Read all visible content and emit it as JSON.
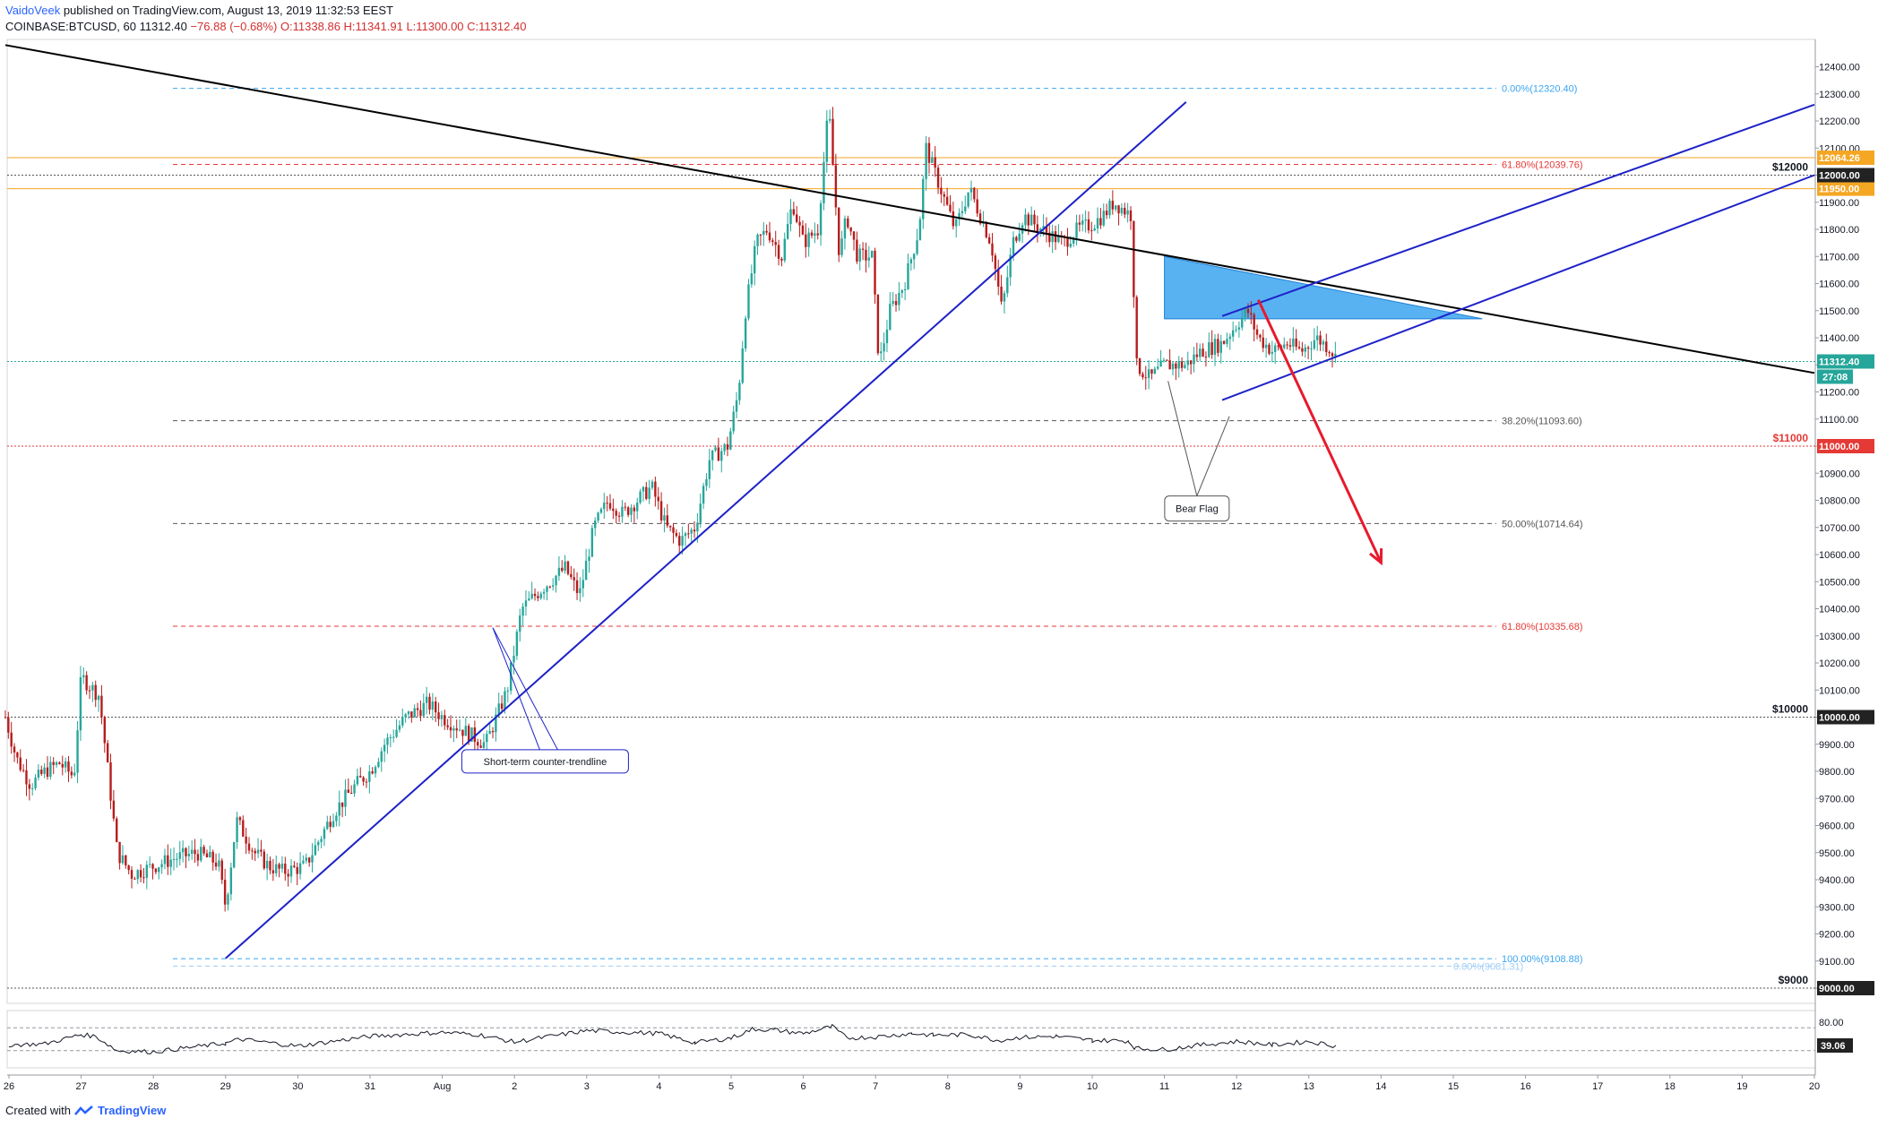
{
  "header": {
    "author": "VaidoVeek",
    "published": "published on TradingView.com, August 13, 2019 11:32:53 EEST",
    "symbol": "COINBASE:BTCUSD, 60",
    "last": "11312.40",
    "change": "−76.88 (−0.68%)",
    "open": "O:11338.86",
    "high": "H:11341.91",
    "low": "L:11300.00",
    "close": "C:11312.40"
  },
  "footer": {
    "created_with": "Created with",
    "brand": "TradingView"
  },
  "colors": {
    "up": "#26a69a",
    "down": "#b71c1c",
    "blue": "#1e22c8",
    "red": "#e53935",
    "orange": "#f5a623",
    "triangle": "#3ba5f0"
  },
  "chart_data": {
    "type": "candlestick",
    "y_axis": {
      "min": 8950,
      "max": 12500,
      "ticks": [
        "9000.00",
        "9100.00",
        "9200.00",
        "9300.00",
        "9400.00",
        "9500.00",
        "9600.00",
        "9700.00",
        "9800.00",
        "9900.00",
        "10000.00",
        "10100.00",
        "10200.00",
        "10300.00",
        "10400.00",
        "10500.00",
        "10600.00",
        "10700.00",
        "10800.00",
        "10900.00",
        "11000.00",
        "11100.00",
        "11200.00",
        "11300.00",
        "11400.00",
        "11500.00",
        "11600.00",
        "11700.00",
        "11800.00",
        "11900.00",
        "12000.00",
        "12100.00",
        "12200.00",
        "12300.00",
        "12400.00"
      ]
    },
    "x_axis": {
      "ticks": [
        {
          "label": "26",
          "day": 0
        },
        {
          "label": "27",
          "day": 1
        },
        {
          "label": "28",
          "day": 2
        },
        {
          "label": "29",
          "day": 3
        },
        {
          "label": "30",
          "day": 4
        },
        {
          "label": "31",
          "day": 5
        },
        {
          "label": "Aug",
          "day": 6
        },
        {
          "label": "2",
          "day": 7
        },
        {
          "label": "3",
          "day": 8
        },
        {
          "label": "4",
          "day": 9
        },
        {
          "label": "5",
          "day": 10
        },
        {
          "label": "6",
          "day": 11
        },
        {
          "label": "7",
          "day": 12
        },
        {
          "label": "8",
          "day": 13
        },
        {
          "label": "9",
          "day": 14
        },
        {
          "label": "10",
          "day": 15
        },
        {
          "label": "11",
          "day": 16
        },
        {
          "label": "12",
          "day": 17
        },
        {
          "label": "13",
          "day": 18
        },
        {
          "label": "14",
          "day": 19
        },
        {
          "label": "15",
          "day": 20
        },
        {
          "label": "16",
          "day": 21
        },
        {
          "label": "17",
          "day": 22
        },
        {
          "label": "18",
          "day": 23
        },
        {
          "label": "19",
          "day": 24
        },
        {
          "label": "20",
          "day": 25
        }
      ]
    },
    "price_path": [
      [
        -0.05,
        10000
      ],
      [
        0.1,
        9850
      ],
      [
        0.3,
        9750
      ],
      [
        0.5,
        9800
      ],
      [
        0.7,
        9830
      ],
      [
        0.9,
        9780
      ],
      [
        1.0,
        10150
      ],
      [
        1.1,
        10120
      ],
      [
        1.25,
        10080
      ],
      [
        1.5,
        9500
      ],
      [
        1.7,
        9420
      ],
      [
        2.0,
        9450
      ],
      [
        2.3,
        9480
      ],
      [
        2.6,
        9500
      ],
      [
        2.9,
        9460
      ],
      [
        3.0,
        9300
      ],
      [
        3.15,
        9620
      ],
      [
        3.4,
        9500
      ],
      [
        3.6,
        9450
      ],
      [
        3.8,
        9430
      ],
      [
        4.1,
        9450
      ],
      [
        4.3,
        9550
      ],
      [
        4.5,
        9650
      ],
      [
        4.8,
        9750
      ],
      [
        5.0,
        9800
      ],
      [
        5.2,
        9900
      ],
      [
        5.5,
        10000
      ],
      [
        5.8,
        10050
      ],
      [
        6.0,
        10000
      ],
      [
        6.3,
        9950
      ],
      [
        6.6,
        9900
      ],
      [
        6.9,
        10100
      ],
      [
        7.1,
        10400
      ],
      [
        7.4,
        10480
      ],
      [
        7.7,
        10550
      ],
      [
        7.9,
        10450
      ],
      [
        8.1,
        10700
      ],
      [
        8.3,
        10800
      ],
      [
        8.5,
        10750
      ],
      [
        8.7,
        10800
      ],
      [
        8.9,
        10850
      ],
      [
        9.1,
        10700
      ],
      [
        9.3,
        10650
      ],
      [
        9.5,
        10700
      ],
      [
        9.7,
        10950
      ],
      [
        9.95,
        11000
      ],
      [
        10.1,
        11200
      ],
      [
        10.2,
        11500
      ],
      [
        10.35,
        11750
      ],
      [
        10.5,
        11800
      ],
      [
        10.7,
        11700
      ],
      [
        10.85,
        11900
      ],
      [
        11.0,
        11750
      ],
      [
        11.2,
        11800
      ],
      [
        11.35,
        12250
      ],
      [
        11.5,
        11700
      ],
      [
        11.6,
        11850
      ],
      [
        11.75,
        11700
      ],
      [
        11.95,
        11700
      ],
      [
        12.05,
        11300
      ],
      [
        12.2,
        11500
      ],
      [
        12.4,
        11600
      ],
      [
        12.6,
        11800
      ],
      [
        12.7,
        12100
      ],
      [
        12.9,
        11950
      ],
      [
        13.1,
        11800
      ],
      [
        13.3,
        11950
      ],
      [
        13.45,
        11850
      ],
      [
        13.6,
        11750
      ],
      [
        13.75,
        11500
      ],
      [
        13.9,
        11750
      ],
      [
        14.05,
        11850
      ],
      [
        14.3,
        11800
      ],
      [
        14.6,
        11750
      ],
      [
        14.8,
        11800
      ],
      [
        15.0,
        11820
      ],
      [
        15.15,
        11850
      ],
      [
        15.3,
        11900
      ],
      [
        15.55,
        11850
      ],
      [
        15.6,
        11300
      ],
      [
        15.8,
        11250
      ],
      [
        16.0,
        11300
      ],
      [
        16.3,
        11300
      ],
      [
        16.5,
        11350
      ],
      [
        16.8,
        11380
      ],
      [
        17.0,
        11450
      ],
      [
        17.15,
        11500
      ],
      [
        17.3,
        11400
      ],
      [
        17.5,
        11350
      ],
      [
        17.7,
        11380
      ],
      [
        17.9,
        11350
      ],
      [
        18.1,
        11400
      ],
      [
        18.3,
        11360
      ],
      [
        18.4,
        11312
      ]
    ],
    "rsi": {
      "ticks": [
        "80.00",
        "39.06"
      ],
      "upper": 70,
      "lower": 30,
      "current": "39.06",
      "path": [
        [
          0,
          40
        ],
        [
          0.5,
          42
        ],
        [
          1,
          58
        ],
        [
          1.2,
          55
        ],
        [
          1.5,
          30
        ],
        [
          2,
          28
        ],
        [
          3,
          43
        ],
        [
          3.2,
          50
        ],
        [
          4,
          38
        ],
        [
          5,
          55
        ],
        [
          6,
          62
        ],
        [
          6.5,
          58
        ],
        [
          7,
          45
        ],
        [
          8,
          65
        ],
        [
          9,
          60
        ],
        [
          9.5,
          44
        ],
        [
          10,
          52
        ],
        [
          10.3,
          68
        ],
        [
          10.6,
          66
        ],
        [
          11,
          60
        ],
        [
          11.4,
          72
        ],
        [
          11.6,
          52
        ],
        [
          12,
          54
        ],
        [
          12.5,
          60
        ],
        [
          12.8,
          57
        ],
        [
          13.3,
          58
        ],
        [
          13.7,
          48
        ],
        [
          14,
          53
        ],
        [
          14.5,
          55
        ],
        [
          15,
          48
        ],
        [
          15.5,
          47
        ],
        [
          15.6,
          34
        ],
        [
          16,
          32
        ],
        [
          16.5,
          40
        ],
        [
          17,
          46
        ],
        [
          17.2,
          44
        ],
        [
          17.5,
          40
        ],
        [
          18,
          46
        ],
        [
          18.4,
          38
        ]
      ]
    },
    "trendlines": [
      {
        "name": "long-term-downtrend",
        "from": [
          -0.05,
          12480
        ],
        "to": [
          25,
          11270
        ],
        "color": "#000000"
      },
      {
        "name": "short-term-counter-trendline",
        "from": [
          3.0,
          9110
        ],
        "to": [
          16.3,
          12270
        ],
        "color": "#1e22c8"
      },
      {
        "name": "channel-upper",
        "from": [
          16.8,
          11480
        ],
        "to": [
          25,
          12260
        ],
        "color": "#1e22c8"
      },
      {
        "name": "channel-lower",
        "from": [
          16.8,
          11170
        ],
        "to": [
          25,
          12000
        ],
        "color": "#1e22c8"
      }
    ],
    "horizontal_levels": [
      {
        "price": 12064.26,
        "color": "#f5a623",
        "label": "12064.26",
        "style": "solid"
      },
      {
        "price": 11950.0,
        "color": "#f5a623",
        "label": "11950.00",
        "style": "solid"
      },
      {
        "price": 12000.0,
        "color": "#555555",
        "label": "12000.00",
        "note": "$12000",
        "style": "dotted"
      },
      {
        "price": 11000.0,
        "color": "#e53935",
        "label": "11000.00",
        "note": "$11000",
        "style": "dotted"
      },
      {
        "price": 10000.0,
        "color": "#555555",
        "label": "10000.00",
        "note": "$10000",
        "style": "dotted"
      },
      {
        "price": 9000.0,
        "color": "#555555",
        "label": "9000.00",
        "note": "$9000",
        "style": "dotted"
      },
      {
        "price": 11312.4,
        "color": "#26a69a",
        "label": "11312.40",
        "style": "dotted"
      }
    ],
    "fib_levels": [
      {
        "price": 12320.4,
        "label": "0.00%(12320.40)",
        "color": "#3ba5f0"
      },
      {
        "price": 12039.76,
        "label": "61.80%(12039.76)",
        "color": "#e53935"
      },
      {
        "price": 11093.6,
        "label": "38.20%(11093.60)",
        "color": "#555555"
      },
      {
        "price": 10714.64,
        "label": "50.00%(10714.64)",
        "color": "#555555"
      },
      {
        "price": 10335.68,
        "label": "61.80%(10335.68)",
        "color": "#e53935"
      },
      {
        "price": 9108.88,
        "label": "100.00%(9108.88)",
        "color": "#3ba5f0"
      },
      {
        "price": 9081.31,
        "label": "0.00%(9081.31)",
        "color": "#a0cdf5"
      }
    ],
    "countdown": "27:08",
    "annotations": [
      {
        "text": "Bear Flag"
      },
      {
        "text": "Short-term counter-trendline"
      }
    ]
  }
}
